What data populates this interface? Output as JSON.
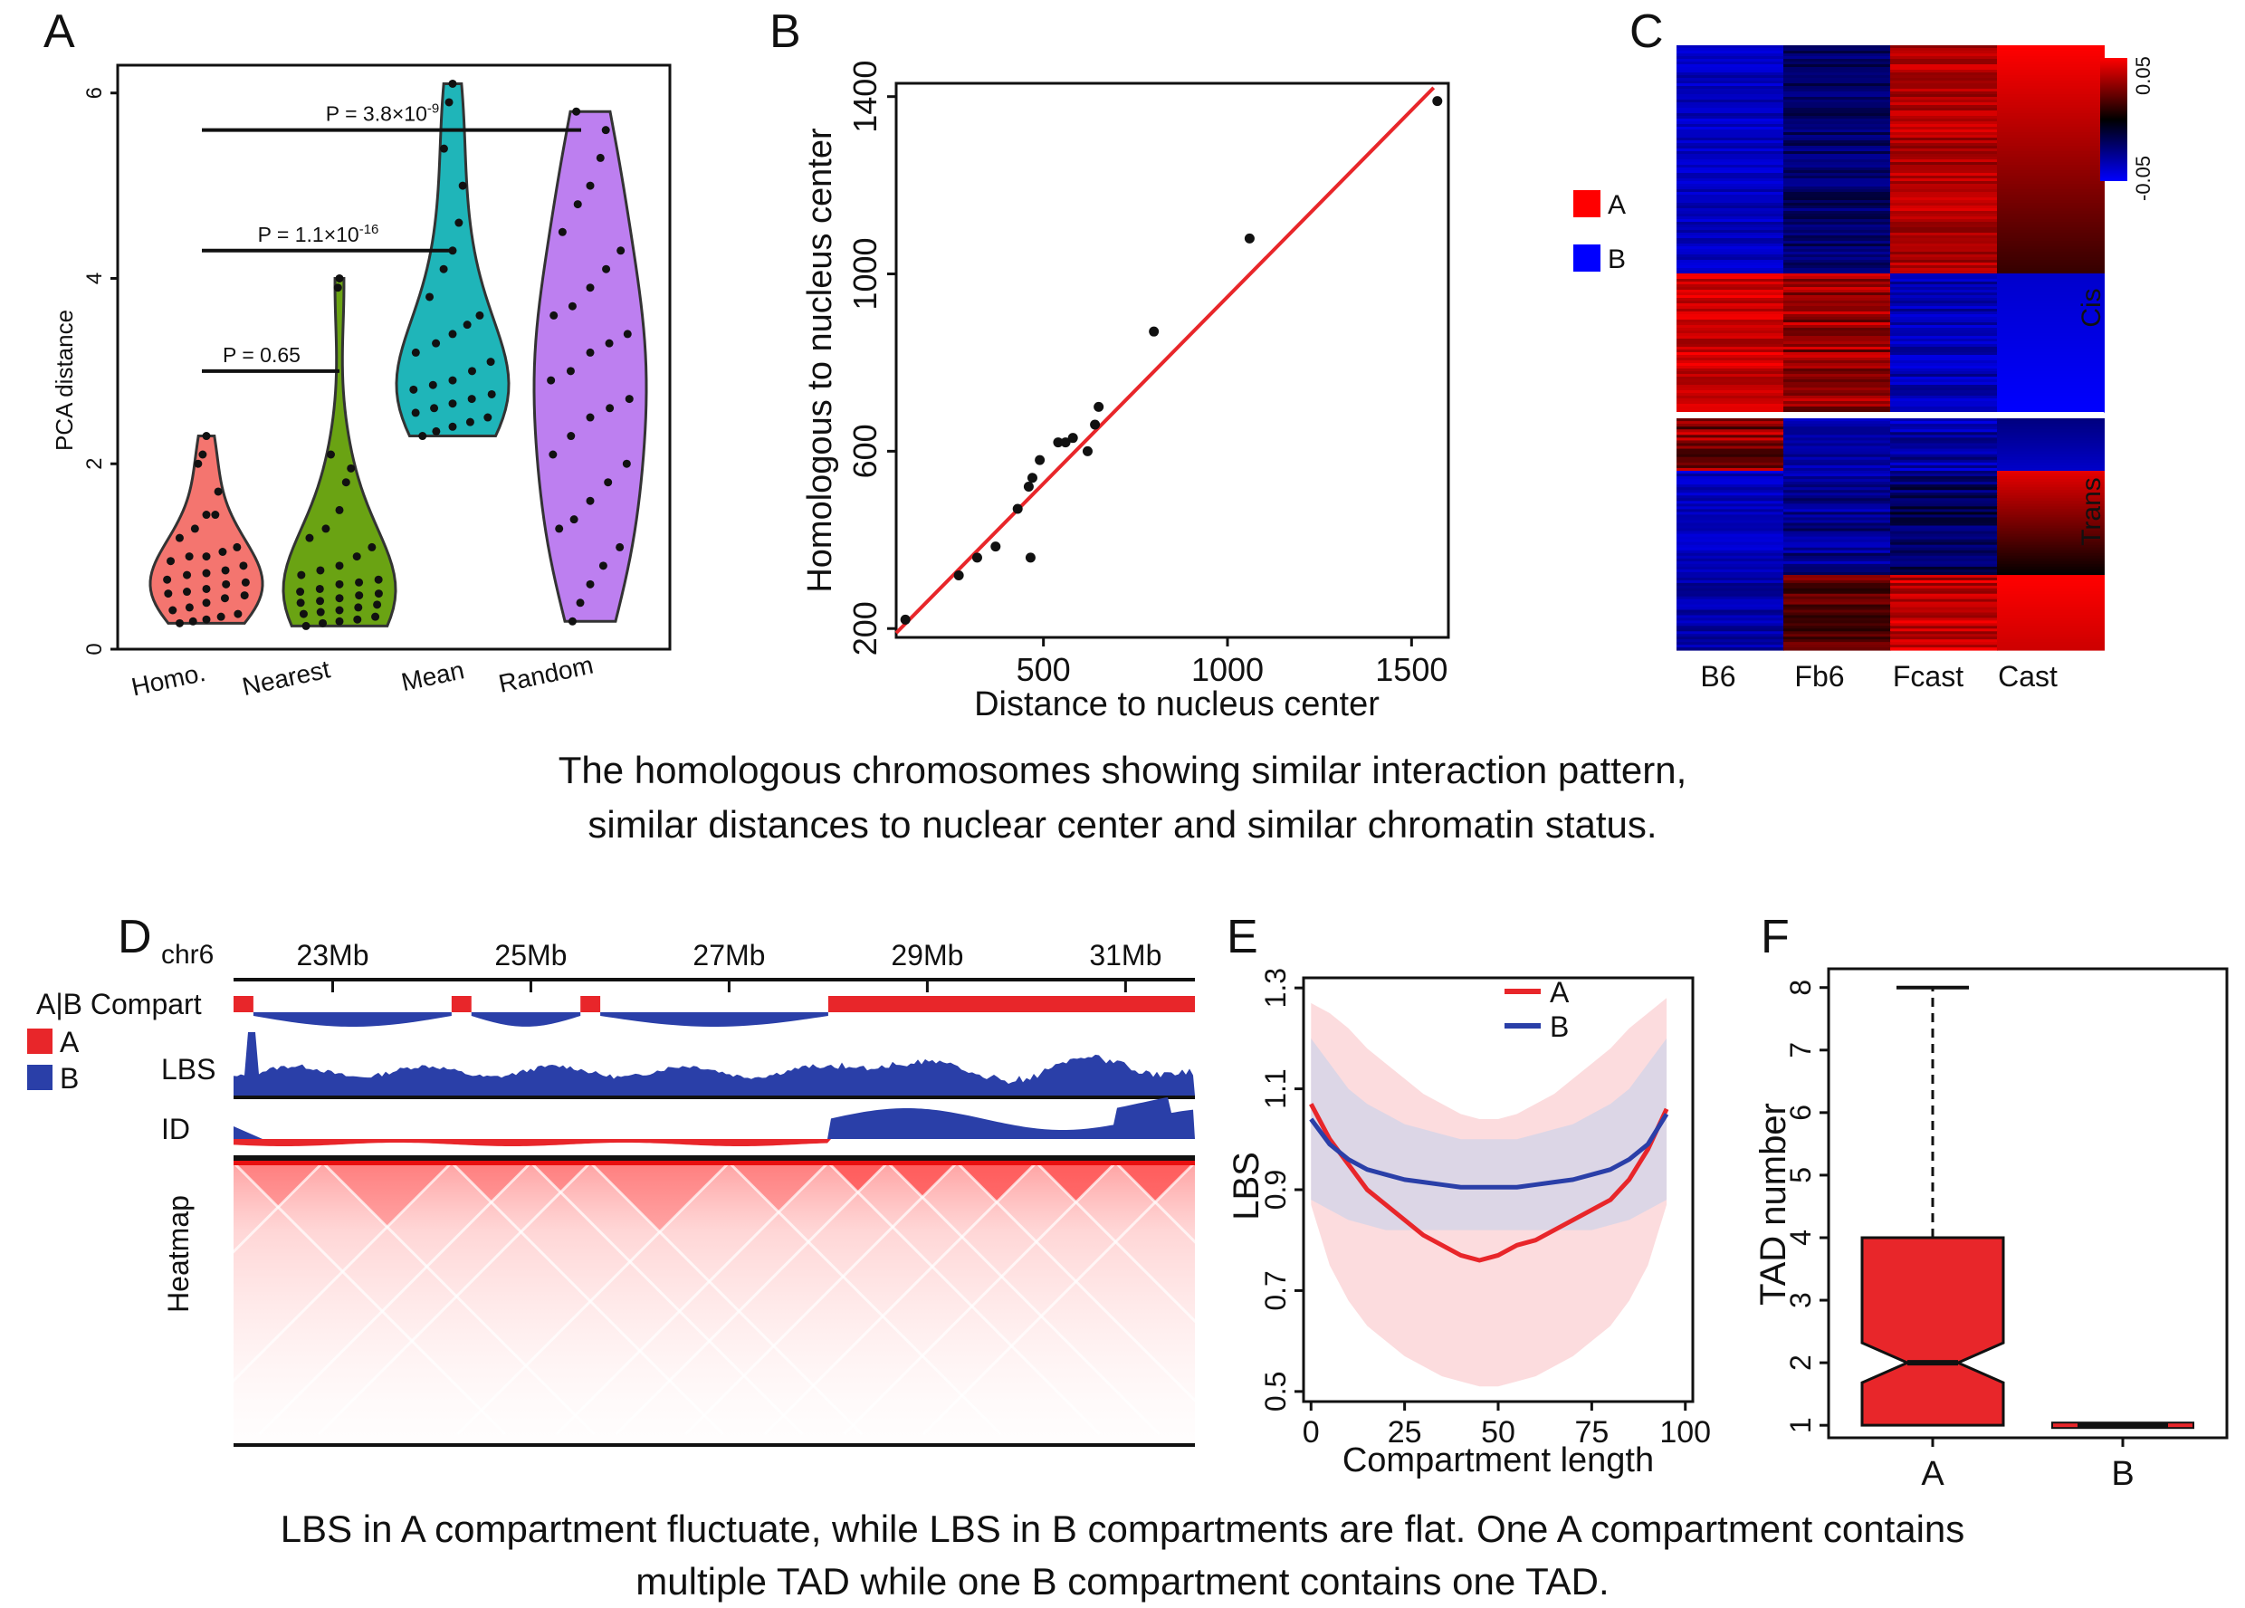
{
  "captions": {
    "top_line1": "The homologous chromosomes showing similar interaction pattern,",
    "top_line2": "similar distances to nuclear center and similar chromatin status.",
    "bottom_line1": "LBS in A compartment fluctuate, while LBS in B compartments are flat. One A compartment contains",
    "bottom_line2": "multiple TAD while one B compartment contains one TAD."
  },
  "colors": {
    "red": "#e8262a",
    "blue": "#2a3fa8",
    "pure_red": "#ff0000",
    "pure_blue": "#0000ff",
    "green": "#6aa313",
    "teal": "#1fb5b9",
    "salmon": "#f4756f",
    "purple": "#bd7ff0"
  },
  "chart_data": [
    {
      "panel": "A",
      "type": "violin",
      "ylabel": "PCA distance",
      "ylim": [
        0,
        6.3
      ],
      "yticks": [
        0,
        2,
        4,
        6
      ],
      "categories": [
        "Homo.",
        "Nearest",
        "Mean",
        "Random"
      ],
      "category_colors": [
        "#f4756f",
        "#6aa313",
        "#1fb5b9",
        "#bd7ff0"
      ],
      "values": [
        [
          0.28,
          0.3,
          0.32,
          0.35,
          0.38,
          0.42,
          0.45,
          0.5,
          0.55,
          0.58,
          0.6,
          0.62,
          0.65,
          0.7,
          0.72,
          0.75,
          0.8,
          0.82,
          0.85,
          0.9,
          0.95,
          1.0,
          1.0,
          1.05,
          1.1,
          1.2,
          1.3,
          1.45,
          1.45,
          1.7,
          2.0,
          2.1,
          2.3
        ],
        [
          0.25,
          0.28,
          0.3,
          0.32,
          0.35,
          0.38,
          0.4,
          0.42,
          0.45,
          0.48,
          0.5,
          0.52,
          0.55,
          0.58,
          0.6,
          0.62,
          0.65,
          0.7,
          0.72,
          0.75,
          0.8,
          0.85,
          0.9,
          1.0,
          1.1,
          1.2,
          1.3,
          1.5,
          1.8,
          1.95,
          2.1,
          3.9,
          4.0
        ],
        [
          2.3,
          2.35,
          2.4,
          2.45,
          2.5,
          2.55,
          2.6,
          2.65,
          2.7,
          2.75,
          2.8,
          2.85,
          2.9,
          3.0,
          3.1,
          3.2,
          3.3,
          3.4,
          3.5,
          3.6,
          3.8,
          4.1,
          4.3,
          4.6,
          5.0,
          5.4,
          5.9,
          6.1
        ],
        [
          0.3,
          0.5,
          0.7,
          0.9,
          1.1,
          1.3,
          1.4,
          1.6,
          1.8,
          2.0,
          2.1,
          2.3,
          2.5,
          2.6,
          2.7,
          2.9,
          3.0,
          3.2,
          3.3,
          3.4,
          3.6,
          3.7,
          3.9,
          4.1,
          4.3,
          4.5,
          4.8,
          5.0,
          5.3,
          5.6,
          5.8
        ]
      ],
      "annotations": [
        {
          "label": "P = 0.65",
          "y": 3.0,
          "from": "Homo.",
          "to": "Nearest"
        },
        {
          "label": "P = 1.1×10",
          "exp": "-16",
          "y": 4.3,
          "from": "Homo.",
          "to": "Mean"
        },
        {
          "label": "P = 3.8×10",
          "exp": "-9",
          "y": 5.6,
          "from": "Homo.",
          "to": "Random"
        }
      ]
    },
    {
      "panel": "B",
      "type": "scatter",
      "xlabel": "Distance to nucleus center",
      "ylabel": "Homologous to nucleus center",
      "xlim": [
        100,
        1600
      ],
      "ylim": [
        180,
        1430
      ],
      "xticks": [
        500,
        1000,
        1500
      ],
      "yticks": [
        200,
        600,
        1000,
        1400
      ],
      "points": [
        [
          125,
          220
        ],
        [
          270,
          320
        ],
        [
          320,
          360
        ],
        [
          370,
          385
        ],
        [
          430,
          470
        ],
        [
          460,
          520
        ],
        [
          470,
          540
        ],
        [
          490,
          580
        ],
        [
          540,
          620
        ],
        [
          560,
          620
        ],
        [
          580,
          630
        ],
        [
          620,
          600
        ],
        [
          640,
          660
        ],
        [
          650,
          700
        ],
        [
          465,
          360
        ],
        [
          800,
          870
        ],
        [
          1060,
          1080
        ],
        [
          1570,
          1390
        ]
      ],
      "fit_line": [
        [
          100,
          190
        ],
        [
          1560,
          1420
        ]
      ]
    },
    {
      "panel": "C",
      "type": "heatmap",
      "columns": [
        "B6",
        "Fb6",
        "Fcast",
        "Cast"
      ],
      "row_groups": [
        "Cis",
        "Trans"
      ],
      "legend": [
        {
          "label": "A",
          "color": "#ff0000"
        },
        {
          "label": "B",
          "color": "#0000ff"
        }
      ],
      "colorbar": {
        "max_label": "0.05",
        "min_label": "-0.05"
      }
    },
    {
      "panel": "D",
      "type": "genome-track",
      "chrom": "chr6",
      "xlim": [
        22,
        31.7
      ],
      "xticks": [
        23,
        25,
        27,
        29,
        31
      ],
      "xtick_labels": [
        "23Mb",
        "25Mb",
        "27Mb",
        "29Mb",
        "31Mb"
      ],
      "tracks": [
        "A|B Compart",
        "LBS",
        "ID",
        "Heatmap"
      ],
      "legend": [
        {
          "label": "A",
          "color": "#e8262a"
        },
        {
          "label": "B",
          "color": "#2a3fa8"
        }
      ],
      "compartments": [
        {
          "type": "A",
          "start": 22.0,
          "end": 22.2
        },
        {
          "type": "B",
          "start": 22.2,
          "end": 24.2
        },
        {
          "type": "A",
          "start": 24.2,
          "end": 24.4
        },
        {
          "type": "B",
          "start": 24.4,
          "end": 25.5
        },
        {
          "type": "A",
          "start": 25.5,
          "end": 25.7
        },
        {
          "type": "B",
          "start": 25.7,
          "end": 28.0
        },
        {
          "type": "A",
          "start": 28.0,
          "end": 31.7
        }
      ]
    },
    {
      "panel": "E",
      "type": "line",
      "xlabel": "Compartment length",
      "ylabel": "LBS",
      "xlim": [
        -2,
        102
      ],
      "ylim": [
        0.48,
        1.32
      ],
      "xticks": [
        0,
        25,
        50,
        75,
        100
      ],
      "yticks": [
        0.5,
        0.7,
        0.9,
        1.1,
        1.3
      ],
      "x": [
        0,
        5,
        10,
        15,
        20,
        25,
        30,
        35,
        40,
        45,
        50,
        55,
        60,
        65,
        70,
        75,
        80,
        85,
        90,
        95
      ],
      "series": [
        {
          "name": "A",
          "color": "#e8262a",
          "values": [
            1.07,
            1.0,
            0.95,
            0.9,
            0.87,
            0.84,
            0.81,
            0.79,
            0.77,
            0.76,
            0.77,
            0.79,
            0.8,
            0.82,
            0.84,
            0.86,
            0.88,
            0.92,
            0.98,
            1.06
          ],
          "lower": [
            0.87,
            0.75,
            0.68,
            0.63,
            0.6,
            0.57,
            0.55,
            0.53,
            0.52,
            0.51,
            0.51,
            0.52,
            0.53,
            0.55,
            0.57,
            0.6,
            0.63,
            0.68,
            0.75,
            0.87
          ],
          "upper": [
            1.27,
            1.25,
            1.22,
            1.18,
            1.15,
            1.12,
            1.09,
            1.07,
            1.05,
            1.04,
            1.04,
            1.05,
            1.07,
            1.09,
            1.12,
            1.15,
            1.18,
            1.22,
            1.25,
            1.28
          ]
        },
        {
          "name": "B",
          "color": "#2a3fa8",
          "values": [
            1.04,
            0.99,
            0.96,
            0.94,
            0.93,
            0.92,
            0.915,
            0.91,
            0.905,
            0.905,
            0.905,
            0.905,
            0.91,
            0.915,
            0.92,
            0.93,
            0.94,
            0.96,
            0.99,
            1.05
          ],
          "lower": [
            0.88,
            0.86,
            0.84,
            0.83,
            0.82,
            0.82,
            0.82,
            0.82,
            0.82,
            0.82,
            0.82,
            0.82,
            0.82,
            0.82,
            0.82,
            0.82,
            0.83,
            0.84,
            0.86,
            0.88
          ],
          "upper": [
            1.2,
            1.15,
            1.1,
            1.07,
            1.05,
            1.03,
            1.02,
            1.01,
            1.0,
            1.0,
            1.0,
            1.0,
            1.01,
            1.02,
            1.03,
            1.05,
            1.07,
            1.1,
            1.15,
            1.2
          ]
        }
      ]
    },
    {
      "panel": "F",
      "type": "boxplot",
      "ylabel": "TAD number",
      "ylim": [
        0.8,
        8.3
      ],
      "yticks": [
        1,
        2,
        3,
        4,
        5,
        6,
        7,
        8
      ],
      "categories": [
        "A",
        "B"
      ],
      "boxes": [
        {
          "min": 1,
          "q1": 1,
          "median": 2,
          "q3": 4,
          "max": 8,
          "color": "#e8262a"
        },
        {
          "min": 1,
          "q1": 1,
          "median": 1,
          "q3": 1,
          "max": 1,
          "color": "#e8262a"
        }
      ]
    }
  ]
}
